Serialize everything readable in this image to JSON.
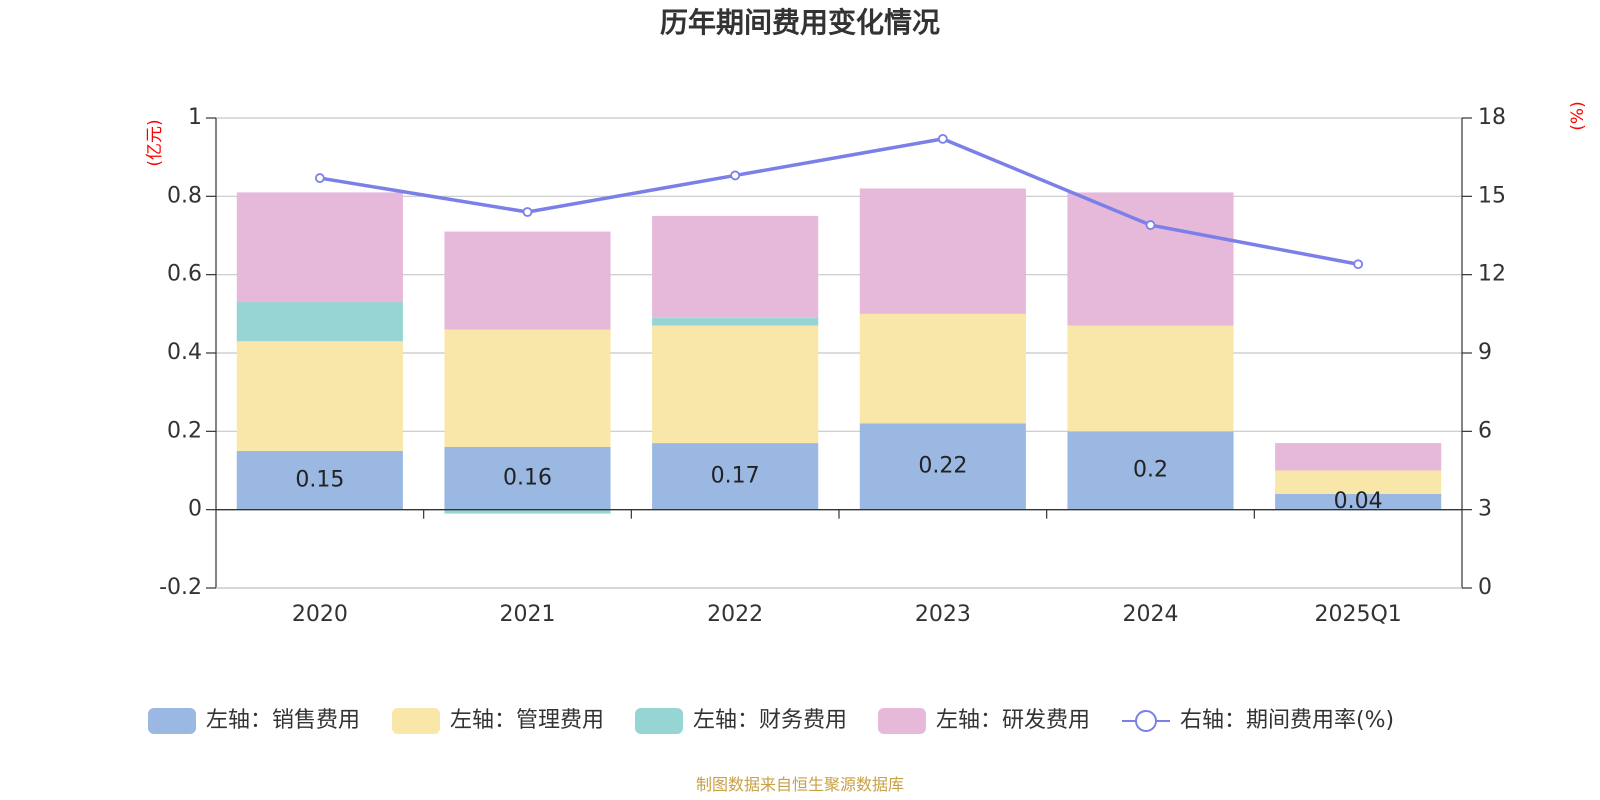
{
  "title": "历年期间费用变化情况",
  "source": "制图数据来自恒生聚源数据库",
  "left_unit": "(亿元)",
  "right_unit": "(%)",
  "chart_data": {
    "type": "bar",
    "stacked": true,
    "title": "历年期间费用变化情况",
    "categories": [
      "2020",
      "2021",
      "2022",
      "2023",
      "2024",
      "2025Q1"
    ],
    "left_axis": {
      "label": "(亿元)",
      "ylim": [
        -0.2,
        1
      ],
      "ticks": [
        "1",
        "0.8",
        "0.6",
        "0.4",
        "0.2",
        "0",
        "-0.2"
      ]
    },
    "right_axis": {
      "label": "(%)",
      "ylim": [
        0,
        18
      ],
      "ticks": [
        "18",
        "15",
        "12",
        "9",
        "6",
        "3",
        "0"
      ]
    },
    "grid": true,
    "legend_position": "bottom",
    "series": [
      {
        "name": "左轴：销售费用",
        "axis": "left",
        "color": "#9bb8e2",
        "values": [
          0.15,
          0.16,
          0.17,
          0.22,
          0.2,
          0.04
        ],
        "labels": [
          "0.15",
          "0.16",
          "0.17",
          "0.22",
          "0.2",
          "0.04"
        ]
      },
      {
        "name": "左轴：管理费用",
        "axis": "left",
        "color": "#f8e7a8",
        "values": [
          0.28,
          0.3,
          0.3,
          0.28,
          0.27,
          0.06
        ]
      },
      {
        "name": "左轴：财务费用",
        "axis": "left",
        "color": "#97d4d4",
        "values": [
          0.1,
          -0.01,
          0.02,
          0,
          0,
          0
        ]
      },
      {
        "name": "左轴：研发费用",
        "axis": "left",
        "color": "#e6b8da",
        "values": [
          0.28,
          0.25,
          0.26,
          0.32,
          0.34,
          0.07
        ]
      },
      {
        "name": "右轴：期间费用率(%)",
        "axis": "right",
        "type": "line",
        "color": "#7b7fe8",
        "values": [
          15.7,
          14.4,
          15.8,
          17.2,
          13.9,
          12.4
        ]
      }
    ]
  }
}
